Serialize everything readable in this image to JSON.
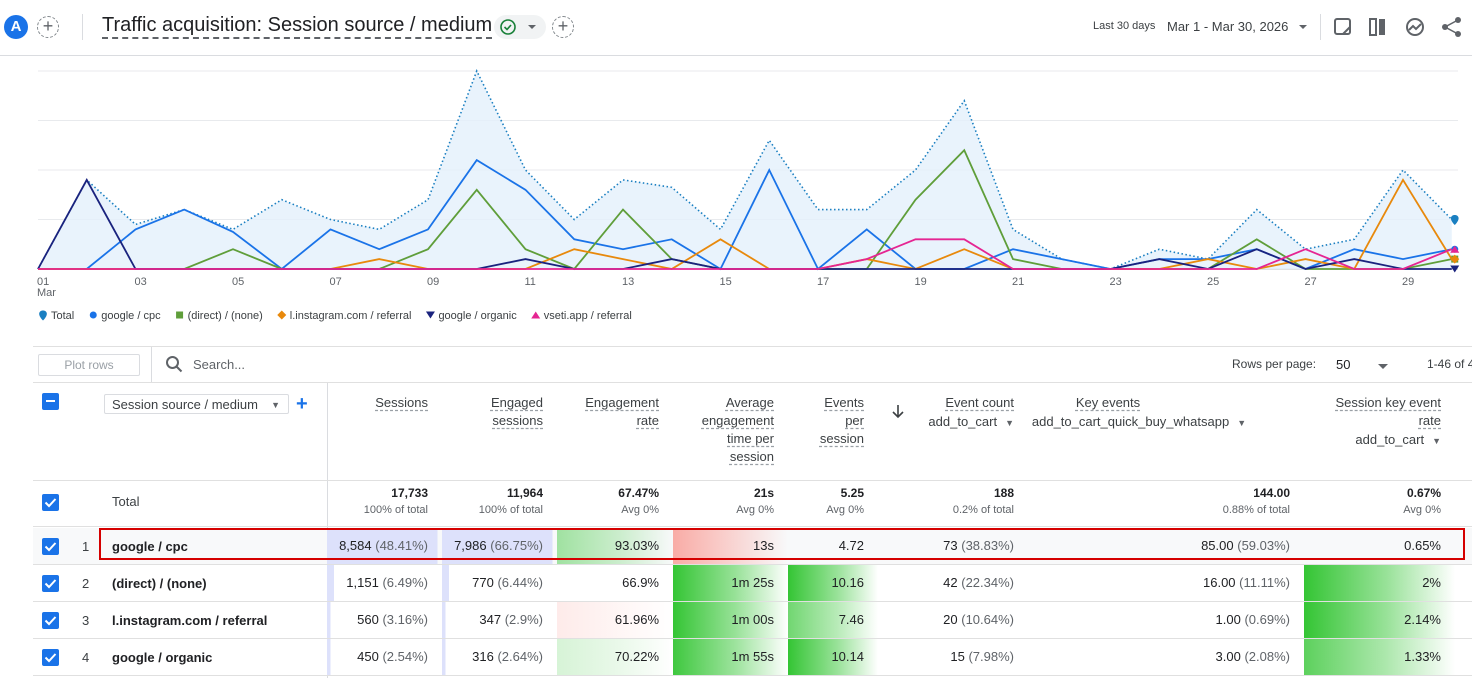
{
  "header": {
    "avatar": "A",
    "title": "Traffic acquisition: Session source / medium",
    "date_range_label": "Last 30 days",
    "date_range": "Mar 1 - Mar 30, 2026"
  },
  "chart_data": {
    "type": "line",
    "categories": [
      "01",
      null,
      "03",
      null,
      "05",
      null,
      "07",
      null,
      "09",
      null,
      "11",
      null,
      "13",
      null,
      "15",
      null,
      "17",
      null,
      "19",
      null,
      "21",
      null,
      "23",
      null,
      "25",
      null,
      "27",
      null,
      "29",
      null
    ],
    "x_sublabel": "Mar",
    "ylim": [
      0,
      4
    ],
    "yticks": [
      0,
      1,
      2,
      3,
      4
    ],
    "show_ytick_labels": false,
    "grid": true,
    "series": [
      {
        "name": "Total",
        "color": "#1a7fc1",
        "style": "dotted-area",
        "marker": "pin",
        "values": [
          0,
          1.8,
          0.9,
          1.2,
          0.8,
          1.4,
          1.0,
          0.8,
          1.4,
          4.0,
          2.0,
          1.0,
          1.8,
          1.65,
          0.8,
          2.6,
          1.2,
          1.2,
          2.0,
          3.4,
          0.8,
          0.2,
          0,
          0.4,
          0.2,
          1.2,
          0.4,
          0.6,
          2.0,
          1.0
        ]
      },
      {
        "name": "google / cpc",
        "color": "#1a73e8",
        "marker": "circle",
        "values": [
          0,
          0,
          0.8,
          1.2,
          0.75,
          0,
          0.8,
          0.4,
          0.8,
          2.2,
          1.6,
          0.6,
          0.4,
          0.6,
          0,
          2.0,
          0,
          0.8,
          0,
          0,
          0.4,
          0.2,
          0,
          0.2,
          0.2,
          0.4,
          0,
          0.4,
          0.2,
          0.4
        ]
      },
      {
        "name": "(direct) / (none)",
        "color": "#5f9e3a",
        "marker": "square",
        "values": [
          0,
          0,
          0,
          0,
          0.4,
          0,
          0,
          0,
          0.4,
          1.6,
          0.4,
          0,
          1.2,
          0.2,
          0,
          0,
          0,
          0,
          1.4,
          2.4,
          0.2,
          0,
          0,
          0,
          0,
          0.6,
          0,
          0,
          0,
          0.2
        ]
      },
      {
        "name": "l.instagram.com / referral",
        "color": "#e8890c",
        "marker": "diamond",
        "values": [
          0,
          0,
          0,
          0,
          0,
          0,
          0,
          0.2,
          0,
          0,
          0,
          0.4,
          0.2,
          0,
          0.6,
          0,
          0,
          0.2,
          0,
          0.4,
          0,
          0,
          0,
          0,
          0.2,
          0,
          0.2,
          0,
          1.8,
          0.2
        ]
      },
      {
        "name": "google / organic",
        "color": "#1a237e",
        "marker": "triangle-down",
        "values": [
          0,
          1.8,
          0,
          0,
          0,
          0,
          0,
          0,
          0,
          0,
          0.2,
          0,
          0,
          0.2,
          0,
          0,
          0,
          0,
          0,
          0,
          0,
          0,
          0,
          0.2,
          0,
          0.4,
          0,
          0.2,
          0,
          0
        ]
      },
      {
        "name": "vseti.app / referral",
        "color": "#e52592",
        "marker": "triangle-up",
        "values": [
          0,
          0,
          0,
          0,
          0,
          0,
          0,
          0,
          0,
          0,
          0,
          0,
          0,
          0,
          0,
          0,
          0,
          0.2,
          0.6,
          0.6,
          0,
          0,
          0,
          0,
          0,
          0,
          0.4,
          0,
          0,
          0.4
        ]
      }
    ]
  },
  "toolbar": {
    "plot_rows": "Plot rows",
    "search_placeholder": "Search...",
    "rows_per_page_label": "Rows per page:",
    "rows_per_page": "50",
    "pagination": "1-46 of 4"
  },
  "table": {
    "dimension": "Session source / medium",
    "columns": [
      {
        "label": "Sessions"
      },
      {
        "label": "Engaged sessions"
      },
      {
        "label": "Engagement rate"
      },
      {
        "label": "Average engagement time per session"
      },
      {
        "label": "Events per session"
      },
      {
        "label": "Event count",
        "sub": "add_to_cart"
      },
      {
        "label": "Key events",
        "sub": "add_to_cart_quick_buy_whatsapp"
      },
      {
        "label": "Session key event rate",
        "sub": "add_to_cart"
      }
    ],
    "totals": {
      "label": "Total",
      "cells": [
        {
          "value": "17,733",
          "note": "100% of total"
        },
        {
          "value": "11,964",
          "note": "100% of total"
        },
        {
          "value": "67.47%",
          "note": "Avg 0%"
        },
        {
          "value": "21s",
          "note": "Avg 0%"
        },
        {
          "value": "5.25",
          "note": "Avg 0%"
        },
        {
          "value": "188",
          "note": "0.2% of total"
        },
        {
          "value": "144.00",
          "note": "0.88% of total"
        },
        {
          "value": "0.67%",
          "note": "Avg 0%"
        }
      ]
    },
    "rows": [
      {
        "index": 1,
        "name": "google / cpc",
        "cells": [
          {
            "value": "8,584",
            "share": "(48.41%)"
          },
          {
            "value": "7,986",
            "share": "(66.75%)"
          },
          {
            "value": "93.03%"
          },
          {
            "value": "13s"
          },
          {
            "value": "4.72"
          },
          {
            "value": "73",
            "share": "(38.83%)"
          },
          {
            "value": "85.00",
            "share": "(59.03%)"
          },
          {
            "value": "0.65%"
          }
        ]
      },
      {
        "index": 2,
        "name": "(direct) / (none)",
        "cells": [
          {
            "value": "1,151",
            "share": "(6.49%)"
          },
          {
            "value": "770",
            "share": "(6.44%)"
          },
          {
            "value": "66.9%"
          },
          {
            "value": "1m 25s"
          },
          {
            "value": "10.16"
          },
          {
            "value": "42",
            "share": "(22.34%)"
          },
          {
            "value": "16.00",
            "share": "(11.11%)"
          },
          {
            "value": "2%"
          }
        ]
      },
      {
        "index": 3,
        "name": "l.instagram.com / referral",
        "cells": [
          {
            "value": "560",
            "share": "(3.16%)"
          },
          {
            "value": "347",
            "share": "(2.9%)"
          },
          {
            "value": "61.96%"
          },
          {
            "value": "1m 00s"
          },
          {
            "value": "7.46"
          },
          {
            "value": "20",
            "share": "(10.64%)"
          },
          {
            "value": "1.00",
            "share": "(0.69%)"
          },
          {
            "value": "2.14%"
          }
        ]
      },
      {
        "index": 4,
        "name": "google / organic",
        "cells": [
          {
            "value": "450",
            "share": "(2.54%)"
          },
          {
            "value": "316",
            "share": "(2.64%)"
          },
          {
            "value": "70.22%"
          },
          {
            "value": "1m 55s"
          },
          {
            "value": "10.14"
          },
          {
            "value": "15",
            "share": "(7.98%)"
          },
          {
            "value": "3.00",
            "share": "(2.08%)"
          },
          {
            "value": "1.33%"
          }
        ]
      }
    ]
  }
}
